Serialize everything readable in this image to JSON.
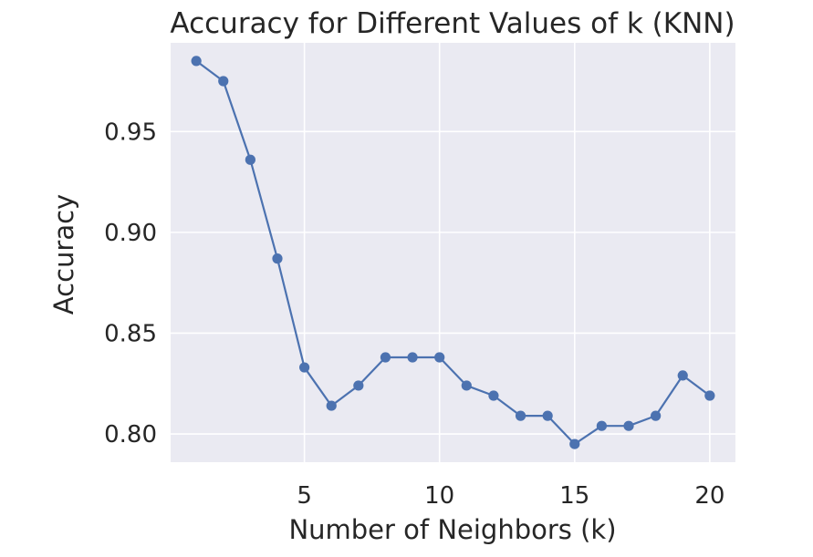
{
  "chart_data": {
    "type": "line",
    "title": "Accuracy for Different Values of k (KNN)",
    "xlabel": "Number of Neighbors (k)",
    "ylabel": "Accuracy",
    "x": [
      1,
      2,
      3,
      4,
      5,
      6,
      7,
      8,
      9,
      10,
      11,
      12,
      13,
      14,
      15,
      16,
      17,
      18,
      19,
      20
    ],
    "series": [
      {
        "values": [
          0.985,
          0.975,
          0.936,
          0.887,
          0.833,
          0.814,
          0.824,
          0.838,
          0.838,
          0.838,
          0.824,
          0.819,
          0.809,
          0.809,
          0.795,
          0.804,
          0.804,
          0.809,
          0.829,
          0.819
        ],
        "color": "#4c72b0",
        "marker": "circle"
      }
    ],
    "xlim": [
      0.05,
      20.95
    ],
    "ylim": [
      0.786,
      0.994
    ],
    "xticks": [
      5,
      10,
      15,
      20
    ],
    "xtick_labels": [
      "5",
      "10",
      "15",
      "20"
    ],
    "yticks": [
      0.8,
      0.85,
      0.9,
      0.95
    ],
    "ytick_labels": [
      "0.80",
      "0.85",
      "0.90",
      "0.95"
    ],
    "grid": true,
    "plot_background": "#eaeaf2",
    "grid_color": "#ffffff"
  }
}
